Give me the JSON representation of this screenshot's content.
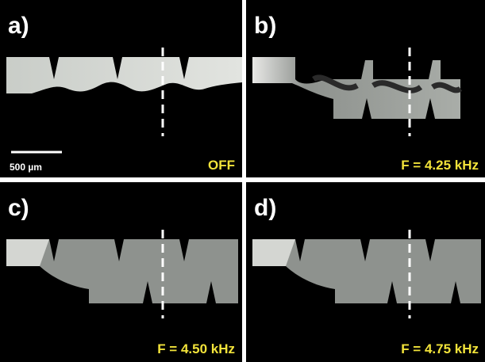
{
  "panels": [
    {
      "label": "a)",
      "caption": "OFF"
    },
    {
      "label": "b)",
      "caption": "F = 4.25 kHz"
    },
    {
      "label": "c)",
      "caption": "F = 4.50 kHz"
    },
    {
      "label": "d)",
      "caption": "F = 4.75 kHz"
    }
  ],
  "scale_bar": {
    "label": "500 µm"
  }
}
